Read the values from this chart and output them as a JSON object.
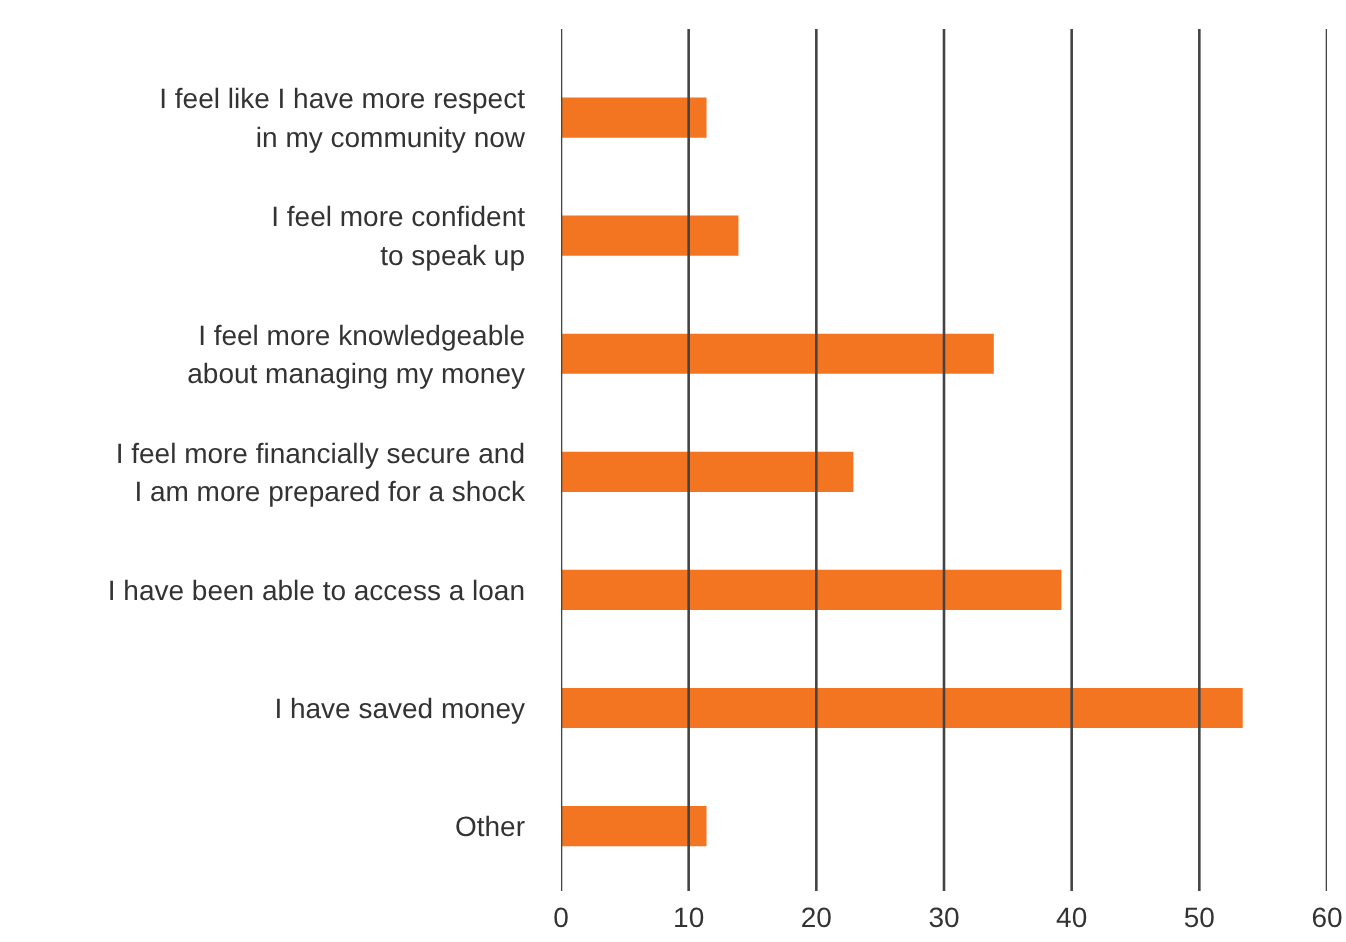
{
  "chart_data": {
    "type": "bar",
    "orientation": "horizontal",
    "categories": [
      "I feel like I have more respect\nin my community now",
      "I feel more confident\nto speak up",
      "I feel more knowledgeable\nabout managing my money",
      "I feel more financially secure and\nI am more prepared for a shock",
      "I have been able to access a loan",
      "I have saved money",
      "Other"
    ],
    "values": [
      11.4,
      13.9,
      33.9,
      22.9,
      39.2,
      53.4,
      11.4
    ],
    "color": "#f47521",
    "xlim": [
      0,
      60
    ],
    "xticks": [
      0,
      10,
      20,
      30,
      40,
      50,
      60
    ],
    "grid": "x"
  }
}
